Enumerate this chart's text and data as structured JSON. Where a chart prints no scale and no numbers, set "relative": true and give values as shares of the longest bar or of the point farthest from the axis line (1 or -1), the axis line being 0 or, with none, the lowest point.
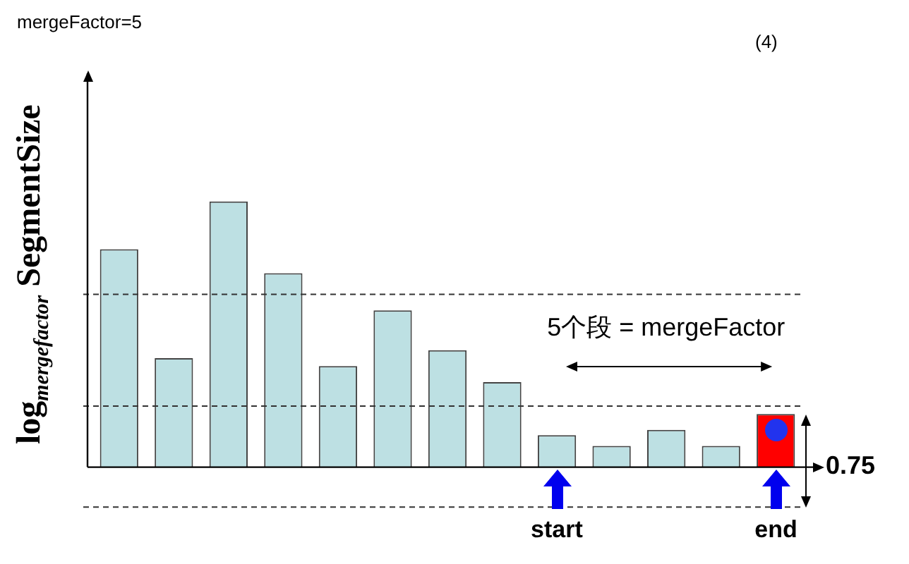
{
  "chart_data": {
    "type": "bar",
    "relative": true,
    "ylabel": "log$_{mergefactor}$ SegmentSize",
    "categories": [
      null,
      null,
      null,
      null,
      null,
      null,
      null,
      null,
      null,
      null,
      null,
      null,
      null
    ],
    "values": [
      0.82,
      0.41,
      1,
      0.73,
      0.38,
      0.59,
      0.44,
      0.32,
      0.12,
      0.08,
      0.14,
      0.08,
      0.2
    ],
    "colors": [
      "#bde0e3",
      "#bde0e3",
      "#bde0e3",
      "#bde0e3",
      "#bde0e3",
      "#bde0e3",
      "#bde0e3",
      "#bde0e3",
      "#bde0e3",
      "#bde0e3",
      "#bde0e3",
      "#bde0e3",
      "#ff0000"
    ],
    "ref_lines": [
      {
        "axis": "y",
        "value": 0.65,
        "color": "#333333",
        "line_style": "dashed"
      },
      {
        "axis": "y",
        "value": 0.23,
        "color": "#333333",
        "line_style": "dashed"
      },
      {
        "axis": "y",
        "value": -0.15,
        "color": "#333333",
        "line_style": "dashed"
      }
    ],
    "annotations": [
      "mergeFactor=5",
      "(4)",
      "5个段 = mergeFactor",
      "start",
      "end",
      "0.75"
    ]
  }
}
